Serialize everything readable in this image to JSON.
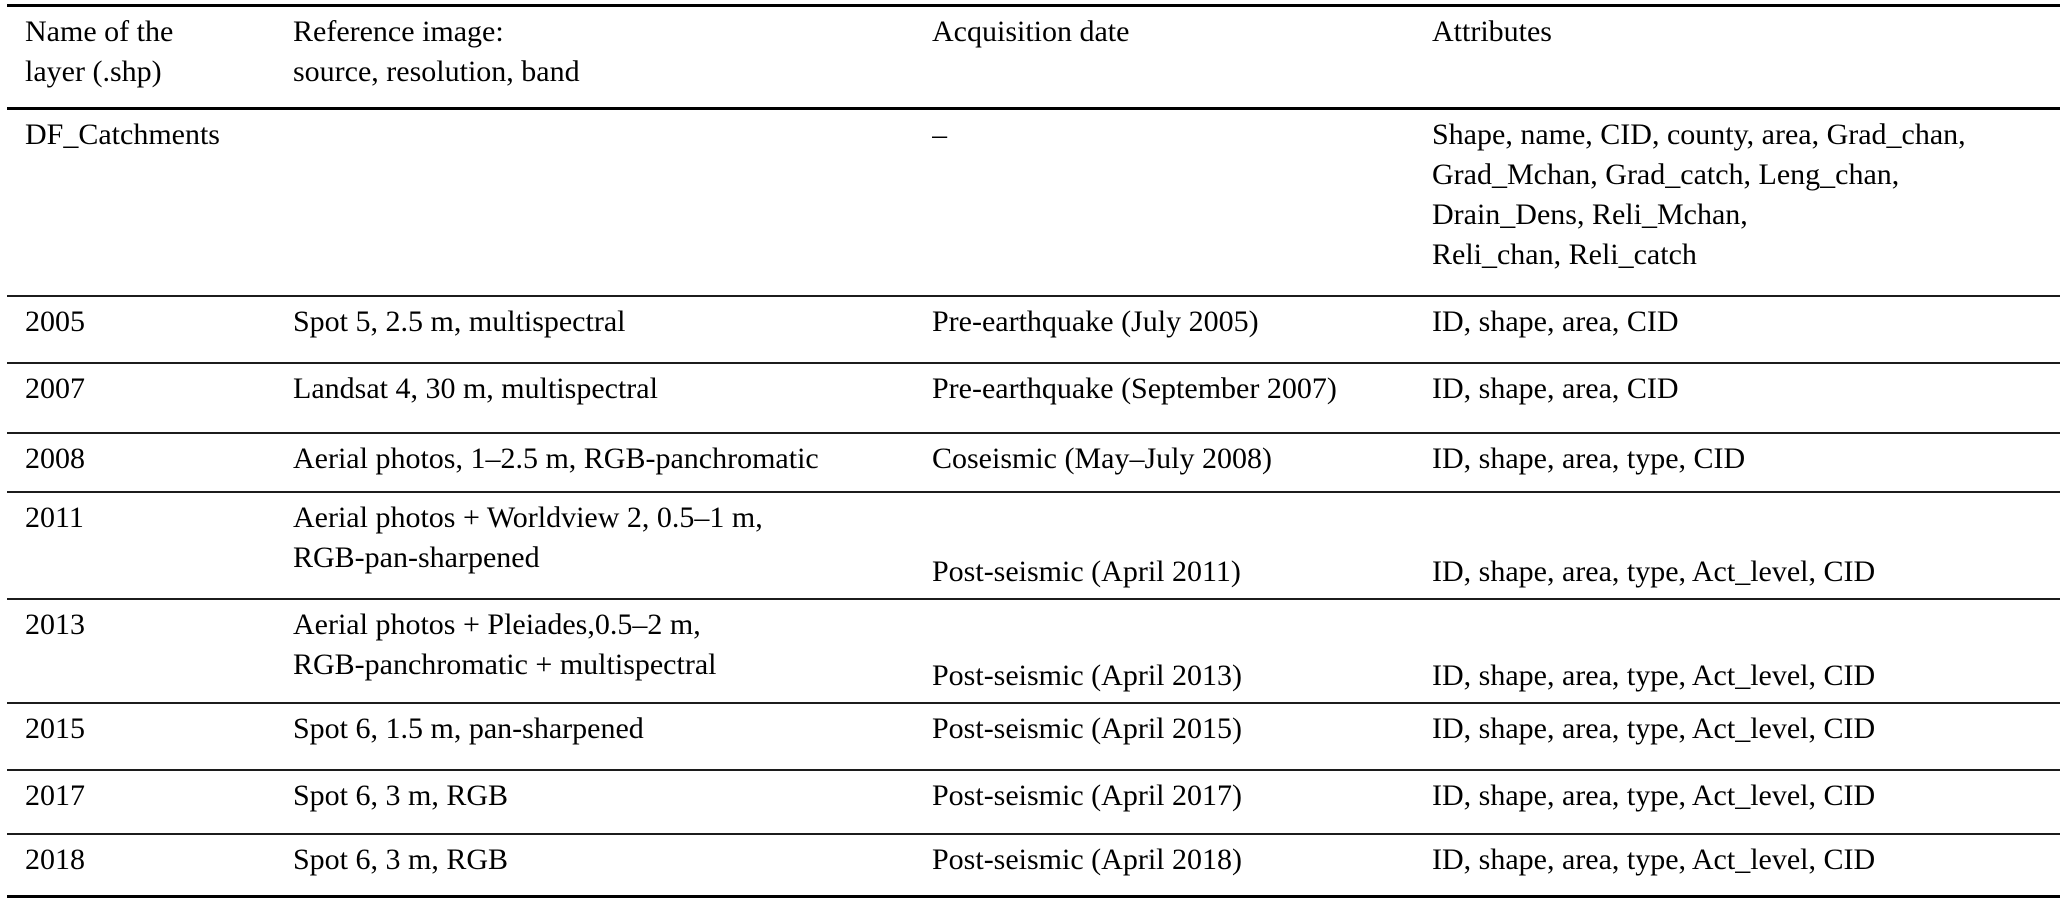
{
  "table": {
    "headers": {
      "layer_name": [
        "Name of the",
        "layer (.shp)"
      ],
      "reference_image": [
        "Reference image:",
        "source, resolution, band"
      ],
      "acquisition_date": "Acquisition date",
      "attributes": "Attributes"
    },
    "rows": [
      {
        "name": "DF_Catchments",
        "reference": "",
        "acquisition": "–",
        "attributes": [
          "Shape, name, CID, county, area, Grad_chan,",
          "Grad_Mchan, Grad_catch, Leng_chan,",
          "Drain_Dens, Reli_Mchan,",
          "Reli_chan, Reli_catch"
        ]
      },
      {
        "name": "2005",
        "reference": "Spot 5, 2.5 m, multispectral",
        "acquisition": "Pre-earthquake (July 2005)",
        "attributes": "ID, shape, area, CID"
      },
      {
        "name": "2007",
        "reference": "Landsat 4, 30 m, multispectral",
        "acquisition": "Pre-earthquake (September 2007)",
        "attributes": "ID, shape, area, CID"
      },
      {
        "name": "2008",
        "reference": "Aerial photos, 1–2.5 m, RGB-panchromatic",
        "acquisition": "Coseismic (May–July 2008)",
        "attributes": "ID, shape, area, type, CID"
      },
      {
        "name": "2011",
        "reference": [
          "Aerial photos + Worldview 2, 0.5–1 m,",
          "RGB-pan-sharpened"
        ],
        "acquisition": "Post-seismic (April 2011)",
        "attributes": "ID, shape, area, type, Act_level, CID"
      },
      {
        "name": "2013",
        "reference": [
          "Aerial photos + Pleiades,0.5–2 m,",
          "RGB-panchromatic + multispectral"
        ],
        "acquisition": "Post-seismic (April 2013)",
        "attributes": "ID, shape, area, type, Act_level, CID"
      },
      {
        "name": "2015",
        "reference": "Spot 6, 1.5 m, pan-sharpened",
        "acquisition": "Post-seismic (April 2015)",
        "attributes": "ID, shape, area, type, Act_level, CID"
      },
      {
        "name": "2017",
        "reference": "Spot 6, 3 m, RGB",
        "acquisition": "Post-seismic (April 2017)",
        "attributes": "ID, shape, area, type, Act_level, CID"
      },
      {
        "name": "2018",
        "reference": "Spot 6, 3 m, RGB",
        "acquisition": "Post-seismic (April 2018)",
        "attributes": "ID, shape, area, type, Act_level, CID"
      }
    ],
    "text_color": "#000000",
    "rule_color": "#000000",
    "background_color": "#ffffff"
  }
}
